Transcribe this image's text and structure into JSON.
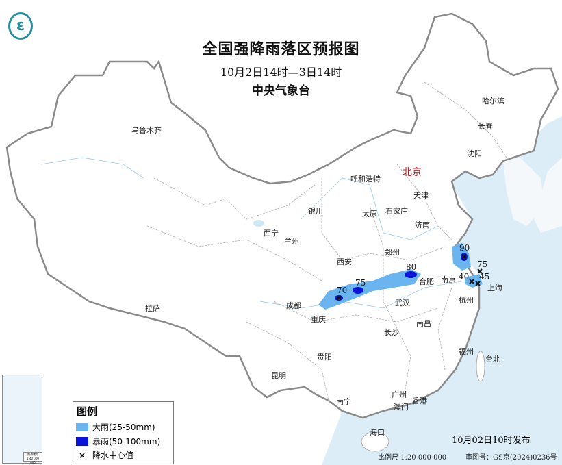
{
  "header": {
    "title": "全国强降雨落区预报图",
    "period": "10月2日14时—3日14时",
    "issuer": "中央气象台",
    "logo_icon": "cma-logo"
  },
  "cities": {
    "urumqi": "乌鲁木齐",
    "harbin": "哈尔滨",
    "changchun": "长春",
    "shenyang": "沈阳",
    "beijing": "北京",
    "hohhot": "呼和浩特",
    "tianjin": "天津",
    "yinchuan": "银川",
    "taiyuan": "太原",
    "shijiazhuang": "石家庄",
    "jinan": "济南",
    "xining": "西宁",
    "lanzhou": "兰州",
    "xian": "西安",
    "zhengzhou": "郑州",
    "hefei": "合肥",
    "nanjing": "南京",
    "shanghai": "上海",
    "hangzhou": "杭州",
    "chengdu": "成都",
    "chongqing": "重庆",
    "wuhan": "武汉",
    "changsha": "长沙",
    "nanchang": "南昌",
    "lhasa": "拉萨",
    "guiyang": "贵阳",
    "fuzhou": "福州",
    "taipei": "台北",
    "kunming": "昆明",
    "nanning": "南宁",
    "guangzhou": "广州",
    "hongkong": "香港",
    "macau": "澳门",
    "haikou": "海口"
  },
  "rain_centers": [
    "70",
    "75",
    "80",
    "90",
    "75",
    "40",
    "45"
  ],
  "legend": {
    "title": "图例",
    "items": [
      {
        "label": "大雨(25-50mm)",
        "color": "#6ab4f0"
      },
      {
        "label": "暴雨(50-100mm)",
        "color": "#0a14d8"
      },
      {
        "label": "降水中心值",
        "symbol": "×"
      }
    ]
  },
  "inset": {
    "scale": "南海诸岛 1:40 000 000"
  },
  "footer": {
    "published": "10月02日10时发布",
    "scale": "比例尺 1:20 000 000",
    "review_no": "审图号：GS京(2024)0236号"
  },
  "colors": {
    "heavy_rain": "#6ab4f0",
    "rainstorm": "#0a14d8",
    "sea": "#dcedf7",
    "border": "#8a8a8a",
    "capital": "#c0262b"
  }
}
